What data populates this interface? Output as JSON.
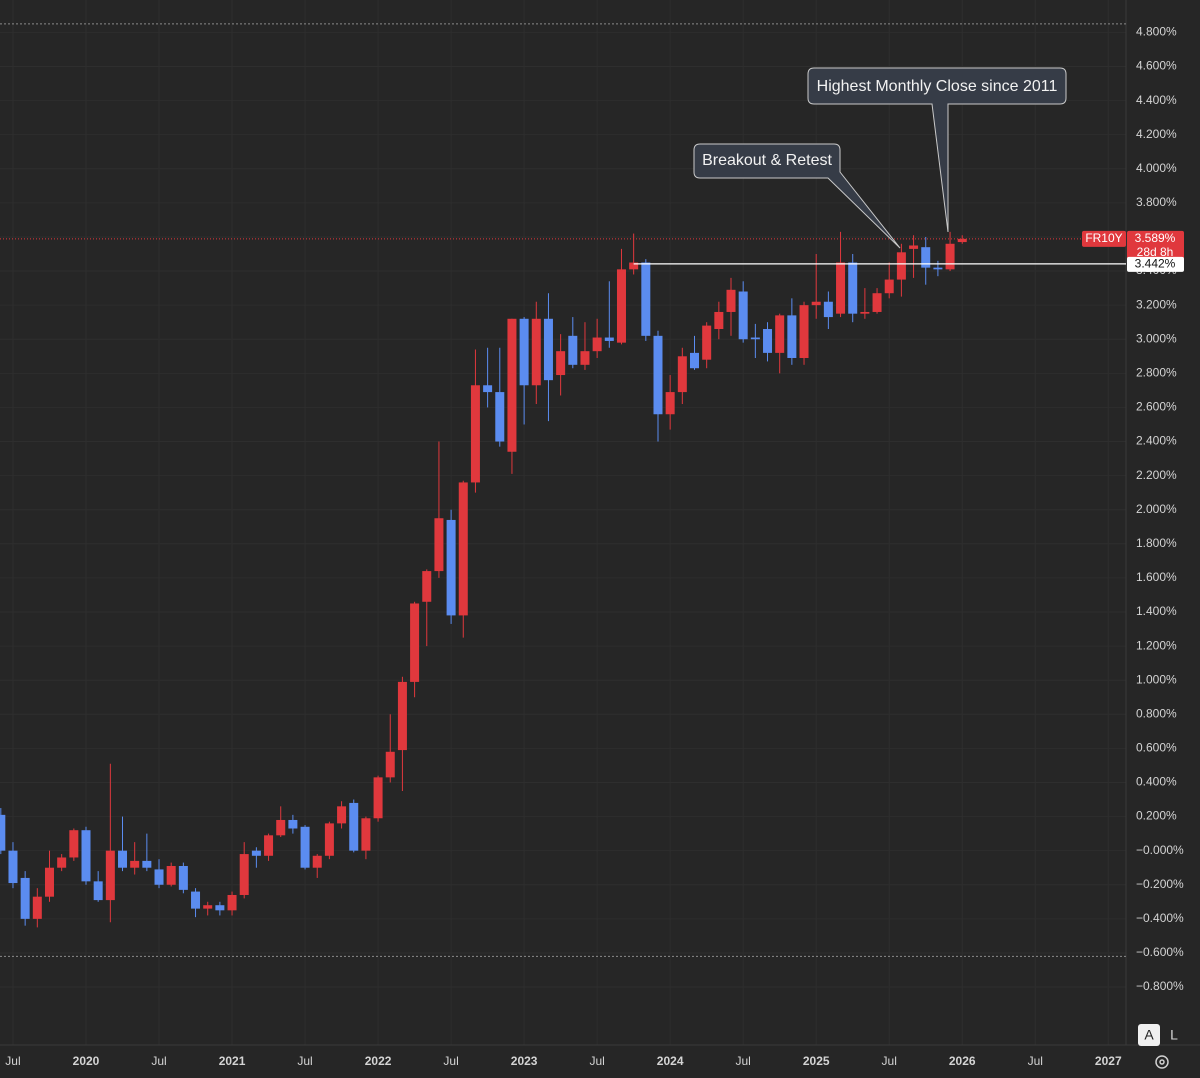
{
  "chart_data": {
    "type": "candlestick",
    "x": [
      "2019-06",
      "2019-07",
      "2019-08",
      "2019-09",
      "2019-10",
      "2019-11",
      "2019-12",
      "2020-01",
      "2020-02",
      "2020-03",
      "2020-04",
      "2020-05",
      "2020-06",
      "2020-07",
      "2020-08",
      "2020-09",
      "2020-10",
      "2020-11",
      "2020-12",
      "2021-01",
      "2021-02",
      "2021-03",
      "2021-04",
      "2021-05",
      "2021-06",
      "2021-07",
      "2021-08",
      "2021-09",
      "2021-10",
      "2021-11",
      "2021-12",
      "2022-01",
      "2022-02",
      "2022-03",
      "2022-04",
      "2022-05",
      "2022-06",
      "2022-07",
      "2022-08",
      "2022-09",
      "2022-10",
      "2022-11",
      "2022-12",
      "2023-01",
      "2023-02",
      "2023-03",
      "2023-04",
      "2023-05",
      "2023-06",
      "2023-07",
      "2023-08",
      "2023-09",
      "2023-10",
      "2023-11",
      "2023-12",
      "2024-01",
      "2024-02",
      "2024-03",
      "2024-04",
      "2024-05",
      "2024-06",
      "2024-07",
      "2024-08",
      "2024-09",
      "2024-10",
      "2024-11",
      "2024-12",
      "2025-01",
      "2025-02",
      "2025-03",
      "2025-04",
      "2025-05",
      "2025-06",
      "2025-07",
      "2025-08",
      "2025-09",
      "2025-10",
      "2025-11",
      "2025-12",
      "2026-01"
    ],
    "open": [
      0.21,
      0.0,
      -0.16,
      -0.4,
      -0.27,
      -0.1,
      -0.04,
      0.12,
      -0.18,
      -0.29,
      0.0,
      -0.1,
      -0.06,
      -0.11,
      -0.2,
      -0.09,
      -0.24,
      -0.34,
      -0.32,
      -0.35,
      -0.26,
      0.0,
      -0.03,
      0.09,
      0.18,
      0.14,
      -0.1,
      -0.03,
      0.16,
      0.28,
      0.0,
      0.19,
      0.43,
      0.59,
      0.99,
      1.46,
      1.64,
      1.94,
      1.38,
      2.16,
      2.73,
      2.69,
      2.34,
      3.12,
      2.73,
      3.12,
      2.79,
      3.02,
      2.85,
      2.93,
      3.01,
      2.98,
      3.41,
      3.45,
      3.02,
      2.56,
      2.69,
      2.92,
      2.88,
      3.06,
      3.16,
      3.28,
      3.01,
      3.06,
      2.92,
      3.14,
      2.89,
      3.2,
      3.22,
      3.15,
      3.45,
      3.15,
      3.16,
      3.27,
      3.35,
      3.53,
      3.54,
      3.42,
      3.41,
      3.57
    ],
    "high": [
      0.25,
      0.05,
      -0.12,
      -0.22,
      0.0,
      -0.02,
      0.13,
      0.14,
      -0.12,
      0.51,
      0.2,
      0.05,
      0.1,
      -0.05,
      -0.07,
      -0.07,
      -0.22,
      -0.3,
      -0.3,
      -0.24,
      0.05,
      0.02,
      0.1,
      0.26,
      0.21,
      0.15,
      -0.02,
      0.17,
      0.29,
      0.3,
      0.2,
      0.44,
      0.8,
      1.02,
      1.46,
      1.65,
      2.4,
      2.0,
      2.17,
      2.94,
      2.95,
      2.95,
      3.12,
      3.13,
      3.22,
      3.27,
      3.03,
      3.13,
      3.1,
      3.12,
      3.34,
      3.53,
      3.62,
      3.47,
      3.05,
      2.79,
      2.95,
      3.02,
      3.1,
      3.22,
      3.36,
      3.34,
      3.09,
      3.1,
      3.15,
      3.24,
      3.22,
      3.5,
      3.28,
      3.63,
      3.5,
      3.3,
      3.3,
      3.45,
      3.56,
      3.61,
      3.6,
      3.46,
      3.63,
      3.61
    ],
    "low": [
      -0.02,
      -0.22,
      -0.44,
      -0.45,
      -0.3,
      -0.12,
      -0.06,
      -0.2,
      -0.3,
      -0.42,
      -0.12,
      -0.14,
      -0.12,
      -0.22,
      -0.21,
      -0.25,
      -0.39,
      -0.38,
      -0.38,
      -0.38,
      -0.28,
      -0.1,
      -0.06,
      0.08,
      0.1,
      -0.11,
      -0.16,
      -0.05,
      0.13,
      -0.01,
      -0.05,
      0.17,
      0.4,
      0.35,
      0.9,
      1.2,
      1.6,
      1.33,
      1.25,
      2.1,
      2.6,
      2.37,
      2.21,
      2.5,
      2.62,
      2.52,
      2.67,
      2.83,
      2.82,
      2.89,
      2.95,
      2.97,
      3.38,
      2.99,
      2.4,
      2.47,
      2.62,
      2.82,
      2.83,
      3.0,
      3.02,
      2.98,
      2.89,
      2.87,
      2.8,
      2.85,
      2.85,
      3.12,
      3.06,
      3.13,
      3.1,
      3.12,
      3.15,
      3.24,
      3.25,
      3.36,
      3.32,
      3.37,
      3.4,
      3.56
    ],
    "close": [
      0.0,
      -0.19,
      -0.4,
      -0.27,
      -0.1,
      -0.04,
      0.12,
      -0.18,
      -0.29,
      0.0,
      -0.1,
      -0.06,
      -0.1,
      -0.2,
      -0.09,
      -0.23,
      -0.34,
      -0.32,
      -0.35,
      -0.26,
      -0.02,
      -0.03,
      0.09,
      0.18,
      0.13,
      -0.1,
      -0.03,
      0.16,
      0.26,
      0.0,
      0.19,
      0.43,
      0.58,
      0.99,
      1.45,
      1.64,
      1.95,
      1.38,
      2.16,
      2.73,
      2.69,
      2.4,
      3.12,
      2.73,
      3.12,
      2.76,
      2.93,
      2.85,
      2.93,
      3.01,
      2.99,
      3.41,
      3.45,
      3.02,
      2.56,
      2.69,
      2.9,
      2.83,
      3.08,
      3.16,
      3.29,
      3.0,
      3.0,
      2.92,
      3.14,
      2.89,
      3.2,
      3.22,
      3.13,
      3.45,
      3.15,
      3.16,
      3.27,
      3.35,
      3.51,
      3.55,
      3.42,
      3.41,
      3.56,
      3.589
    ],
    "up_color": "#e0383d",
    "down_color": "#5b8cf0",
    "ylim": [
      -1.14,
      4.99
    ],
    "yticks": [
      {
        "value": 4.8,
        "label": "4.800%"
      },
      {
        "value": 4.6,
        "label": "4.600%"
      },
      {
        "value": 4.4,
        "label": "4.400%"
      },
      {
        "value": 4.2,
        "label": "4.200%"
      },
      {
        "value": 4.0,
        "label": "4.000%"
      },
      {
        "value": 3.8,
        "label": "3.800%"
      },
      {
        "value": 3.6,
        "label": "3.600%"
      },
      {
        "value": 3.4,
        "label": "3.400%"
      },
      {
        "value": 3.2,
        "label": "3.200%"
      },
      {
        "value": 3.0,
        "label": "3.000%"
      },
      {
        "value": 2.8,
        "label": "2.800%"
      },
      {
        "value": 2.6,
        "label": "2.600%"
      },
      {
        "value": 2.4,
        "label": "2.400%"
      },
      {
        "value": 2.2,
        "label": "2.200%"
      },
      {
        "value": 2.0,
        "label": "2.000%"
      },
      {
        "value": 1.8,
        "label": "1.800%"
      },
      {
        "value": 1.6,
        "label": "1.600%"
      },
      {
        "value": 1.4,
        "label": "1.400%"
      },
      {
        "value": 1.2,
        "label": "1.200%"
      },
      {
        "value": 1.0,
        "label": "1.000%"
      },
      {
        "value": 0.8,
        "label": "0.800%"
      },
      {
        "value": 0.6,
        "label": "0.600%"
      },
      {
        "value": 0.4,
        "label": "0.400%"
      },
      {
        "value": 0.2,
        "label": "0.200%"
      },
      {
        "value": 0,
        "label": "−0.000%"
      },
      {
        "value": -0.2,
        "label": "−0.200%"
      },
      {
        "value": -0.4,
        "label": "−0.400%"
      },
      {
        "value": -0.6,
        "label": "−0.600%"
      },
      {
        "value": -0.8,
        "label": "−0.800%"
      }
    ],
    "xticks": [
      {
        "value": "2019-07",
        "label": "Jul"
      },
      {
        "value": "2020-01",
        "label": "2020"
      },
      {
        "value": "2020-07",
        "label": "Jul"
      },
      {
        "value": "2021-01",
        "label": "2021"
      },
      {
        "value": "2021-07",
        "label": "Jul"
      },
      {
        "value": "2022-01",
        "label": "2022"
      },
      {
        "value": "2022-07",
        "label": "Jul"
      },
      {
        "value": "2023-01",
        "label": "2023"
      },
      {
        "value": "2023-07",
        "label": "Jul"
      },
      {
        "value": "2024-01",
        "label": "2024"
      },
      {
        "value": "2024-07",
        "label": "Jul"
      },
      {
        "value": "2025-01",
        "label": "2025"
      },
      {
        "value": "2025-07",
        "label": "Jul"
      },
      {
        "value": "2026-01",
        "label": "2026"
      },
      {
        "value": "2026-07",
        "label": "Jul"
      },
      {
        "value": "2027-01",
        "label": "2027"
      }
    ],
    "grid": true,
    "dotted_lines": [
      4.85,
      -0.62
    ],
    "last_price": {
      "symbol": "FR10Y",
      "value": 3.589,
      "label": "3.589%",
      "countdown": "28d 8h"
    },
    "hline": {
      "start": "2023-10",
      "value": 3.442,
      "label": "3.442%"
    },
    "annotations": [
      "Highest Monthly Close since 2011",
      "Breakout & Retest"
    ],
    "buttons": [
      "A",
      "L"
    ]
  }
}
